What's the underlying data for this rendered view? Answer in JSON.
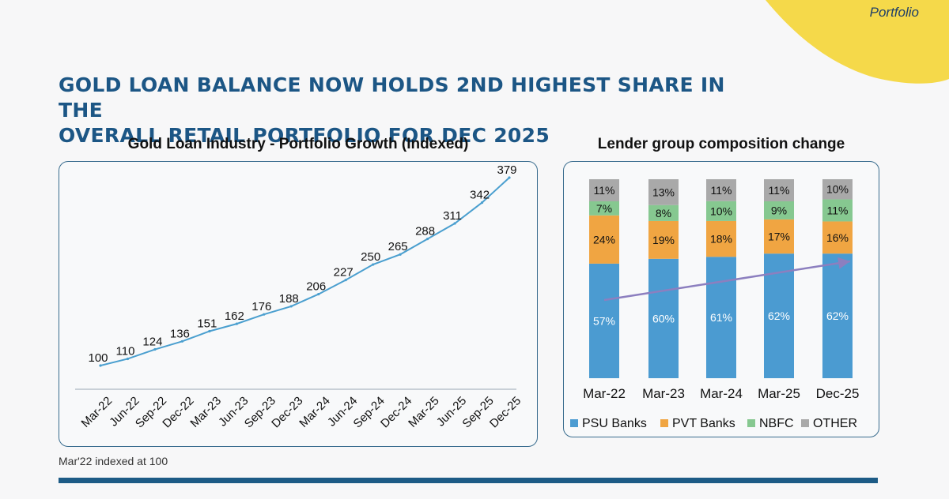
{
  "brand": {
    "label": "Portfolio"
  },
  "headline": {
    "line1": "Gold Loan Balance now holds 2nd highest share in the",
    "line2": "overall retail portfolio for Dec 2025"
  },
  "footnote": "Mar'22 indexed at 100",
  "colors": {
    "accent_yellow": "#f5d94a",
    "navy": "#1d5b86",
    "line": "#4a9fcf",
    "psu": "#4b9bd1",
    "pvt": "#f0a542",
    "nbfc": "#86c890",
    "other": "#a9a9a9",
    "trend_arrow": "#8c7fbf"
  },
  "chart_data": [
    {
      "type": "line",
      "title": "Gold Loan Industry - Portfolio Growth (Indexed)",
      "categories": [
        "Mar-22",
        "Jun-22",
        "Sep-22",
        "Dec-22",
        "Mar-23",
        "Jun-23",
        "Sep-23",
        "Dec-23",
        "Mar-24",
        "Jun-24",
        "Sep-24",
        "Dec-24",
        "Mar-25",
        "Jun-25",
        "Sep-25",
        "Dec-25"
      ],
      "values": [
        100,
        110,
        124,
        136,
        151,
        162,
        176,
        188,
        206,
        227,
        250,
        265,
        288,
        311,
        342,
        379
      ],
      "grid": false
    },
    {
      "type": "bar",
      "stacked": true,
      "title": "Lender group composition change",
      "categories": [
        "Mar-22",
        "Mar-23",
        "Mar-24",
        "Mar-25",
        "Dec-25"
      ],
      "series": [
        {
          "name": "PSU Banks",
          "values": [
            57,
            60,
            61,
            62,
            62
          ],
          "labels": [
            "57%",
            "60%",
            "61%",
            "62%",
            "62%"
          ]
        },
        {
          "name": "PVT Banks",
          "values": [
            24,
            19,
            18,
            17,
            16
          ],
          "labels": [
            "24%",
            "19%",
            "18%",
            "17%",
            "16%"
          ]
        },
        {
          "name": "NBFC",
          "values": [
            7,
            8,
            10,
            9,
            11
          ],
          "labels": [
            "7%",
            "8%",
            "10%",
            "9%",
            "11%"
          ]
        },
        {
          "name": "OTHER",
          "values": [
            11,
            13,
            11,
            11,
            10
          ],
          "labels": [
            "11%",
            "13%",
            "11%",
            "11%",
            "10%"
          ]
        }
      ],
      "legend": "bottom",
      "trend_arrow": "PSU Banks rising"
    }
  ]
}
